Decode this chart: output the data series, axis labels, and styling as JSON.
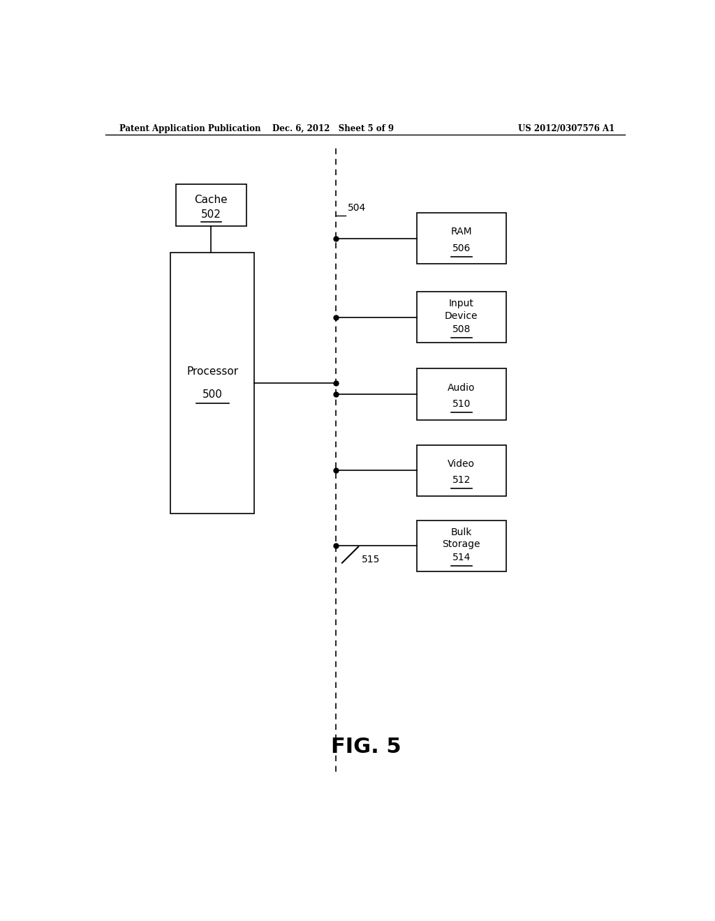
{
  "background_color": "#ffffff",
  "header_left": "Patent Application Publication",
  "header_center": "Dec. 6, 2012   Sheet 5 of 9",
  "header_right": "US 2012/0307576 A1",
  "fig_label": "FIG. 5",
  "processor_label": "Processor",
  "processor_num": "500",
  "cache_label": "Cache",
  "cache_num": "502",
  "bus_label": "504",
  "cable_label": "515",
  "devices": [
    {
      "label": "RAM",
      "num": "506"
    },
    {
      "label": "Input\nDevice",
      "num": "508"
    },
    {
      "label": "Audio",
      "num": "510"
    },
    {
      "label": "Video",
      "num": "512"
    },
    {
      "label": "Bulk\nStorage",
      "num": "514"
    }
  ]
}
